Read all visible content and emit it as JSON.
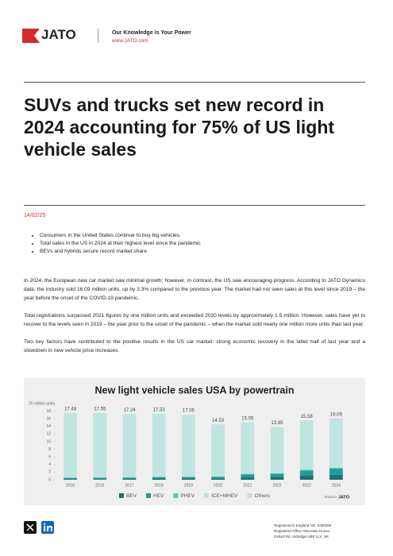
{
  "header": {
    "logo": "JATO",
    "tagline": "Our Knowledge is Your Power",
    "url": "www.JATO.com"
  },
  "title": "SUVs and trucks set new record in 2024 accounting for 75% of US light vehicle sales",
  "date": "14/02/25",
  "bullets": [
    "Consumers in the United States continue to buy big vehicles.",
    "Total sales in the US in 2024 at their highest level since the pandemic",
    "BEVs and hybrids secure record market share"
  ],
  "paragraphs": [
    "In 2024, the European new car market saw minimal growth; however, in contrast, the US saw encouraging progress. According to JATO Dynamics data, the industry sold 16.09 million units, up by 3.3% compared to the previous year. The market had not seen sales at this level since 2019 – the year before the onset of the COVID-19 pandemic.",
    "Total registrations surpassed 2021 figures by one million units and exceeded 2020 levels by approximately 1.5 million. However, sales have yet to recover to the levels seen in 2019 – the year prior to the onset of the pandemic – when the market sold nearly one million more units than last year.",
    "Two key factors have contributed to the positive results in the US car market: strong economic recovery in the latter half of last year and a slowdown in new vehicle price increases."
  ],
  "chart_data": {
    "type": "stacked_bar",
    "title": "New light vehicle sales USA by powertrain",
    "categories": [
      "2015",
      "2016",
      "2017",
      "2018",
      "2019",
      "2020",
      "2021",
      "2022",
      "2023",
      "2024"
    ],
    "series": [
      {
        "name": "BEV",
        "color": "#17736f",
        "values": [
          0.1,
          0.16,
          0.2,
          0.33,
          0.33,
          0.3,
          0.6,
          0.8,
          1.2,
          1.3
        ]
      },
      {
        "name": "HEV",
        "color": "#1f9d94",
        "values": [
          0.38,
          0.35,
          0.36,
          0.34,
          0.38,
          0.45,
          0.8,
          0.75,
          1.2,
          1.6
        ]
      },
      {
        "name": "PHEV",
        "color": "#5cc3b8",
        "values": [
          0.08,
          0.09,
          0.1,
          0.12,
          0.09,
          0.08,
          0.14,
          0.14,
          0.2,
          0.25
        ]
      },
      {
        "name": "ICE+MHEV",
        "color": "#bfe5df",
        "values": [
          16.9,
          16.93,
          16.56,
          16.52,
          16.23,
          13.68,
          13.49,
          12.14,
          12.96,
          12.92
        ]
      },
      {
        "name": "Others",
        "color": "#d6d6d6",
        "values": [
          0.02,
          0.02,
          0.02,
          0.02,
          0.02,
          0.02,
          0.02,
          0.02,
          0.02,
          0.02
        ]
      }
    ],
    "totals": [
      17.48,
      17.55,
      17.24,
      17.33,
      17.05,
      14.53,
      15.05,
      13.85,
      15.58,
      16.09
    ],
    "ylim": [
      0,
      20
    ],
    "yticks": [
      0,
      2,
      4,
      6,
      8,
      10,
      12,
      14,
      16,
      18,
      {
        "value": 20,
        "label": "20 million units"
      }
    ],
    "source": "Source:",
    "source_logo": "JATO"
  },
  "footer": [
    "Registered in England NO. 3260290",
    "Registered Office: Mountain House,",
    "Oxford Rd, Uxbridge UB8 1LX, UK"
  ]
}
